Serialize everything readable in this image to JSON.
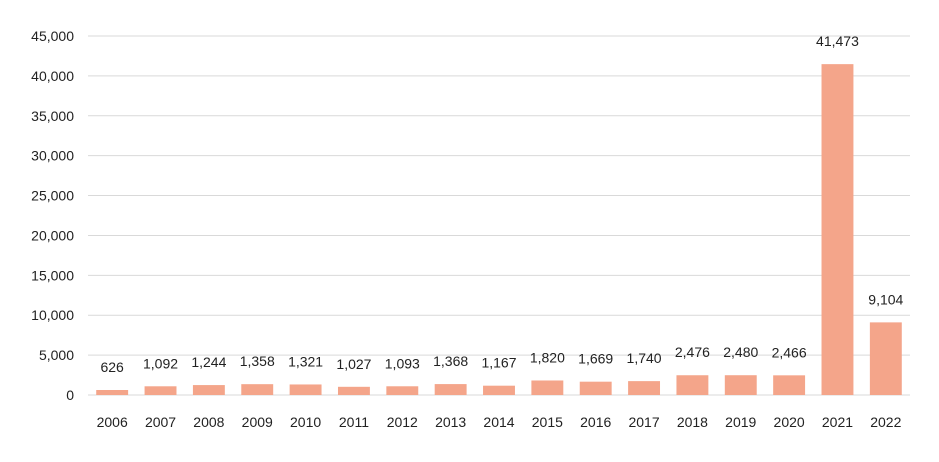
{
  "chart_data": {
    "type": "bar",
    "categories": [
      "2006",
      "2007",
      "2008",
      "2009",
      "2010",
      "2011",
      "2012",
      "2013",
      "2014",
      "2015",
      "2016",
      "2017",
      "2018",
      "2019",
      "2020",
      "2021",
      "2022"
    ],
    "values": [
      626,
      1092,
      1244,
      1358,
      1321,
      1027,
      1093,
      1368,
      1167,
      1820,
      1669,
      1740,
      2476,
      2480,
      2466,
      41473,
      9104
    ],
    "data_labels": [
      "626",
      "1,092",
      "1,244",
      "1,358",
      "1,321",
      "1,027",
      "1,093",
      "1,368",
      "1,167",
      "1,820",
      "1,669",
      "1,740",
      "2,476",
      "2,480",
      "2,466",
      "41,473",
      "9,104"
    ],
    "y_ticks": [
      0,
      5000,
      10000,
      15000,
      20000,
      25000,
      30000,
      35000,
      40000,
      45000
    ],
    "y_tick_labels": [
      "0",
      "5,000",
      "10,000",
      "15,000",
      "20,000",
      "25,000",
      "30,000",
      "35,000",
      "40,000",
      "45,000"
    ],
    "ylim": [
      0,
      45000
    ],
    "grid": true,
    "legend": "none",
    "title": "",
    "xlabel": "",
    "ylabel": "",
    "colors": {
      "bar": "#f4a58a",
      "grid": "#d9d9d9",
      "text": "#222222"
    }
  }
}
